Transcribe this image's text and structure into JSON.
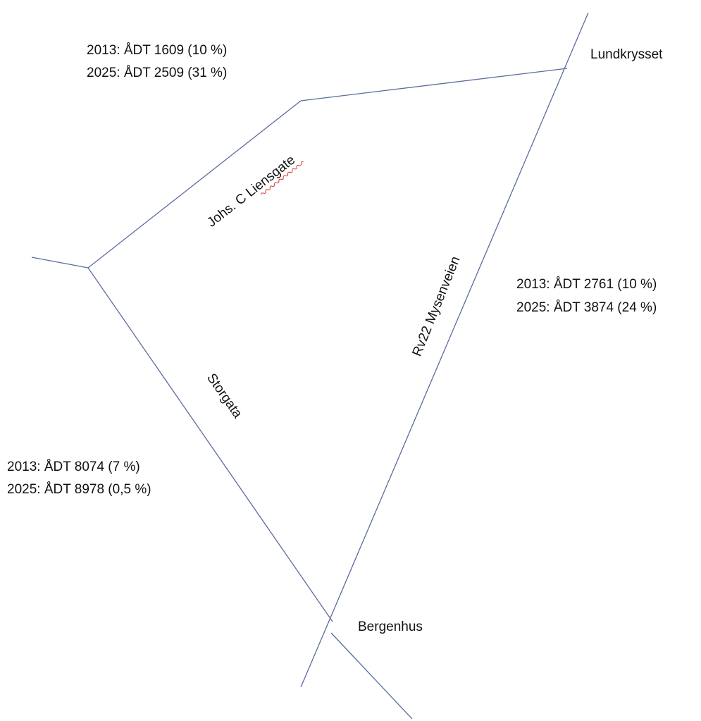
{
  "roads": [
    {
      "label": "Johs. C Liensgate"
    },
    {
      "label": "Rv22 Mysenveien"
    },
    {
      "label": "Storgata"
    }
  ],
  "places": [
    {
      "label": "Lundkrysset"
    },
    {
      "label": "Bergenhus"
    }
  ],
  "traffic": [
    {
      "lines": [
        "2013: ÅDT 1609 (10 %)",
        "2025: ÅDT 2509 (31 %)"
      ]
    },
    {
      "lines": [
        "2013: ÅDT 2761 (10 %)",
        "2025: ÅDT 3874 (24 %)"
      ]
    },
    {
      "lines": [
        "2013: ÅDT 8074 (7 %)",
        "2025: ÅDT 8978 (0,5 %)"
      ]
    }
  ]
}
